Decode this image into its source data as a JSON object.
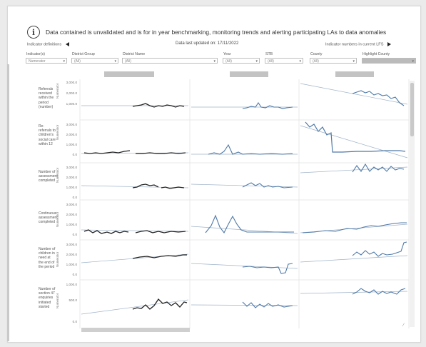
{
  "notice": {
    "text": "Data contained is unvalidated and is for in year benchmarking, monitoring trends and alerting participating LAs to data anomalies"
  },
  "nav": {
    "indicator_definitions": "Indicator definitions",
    "data_updated": "Data last updated on: 17/11/2022",
    "indicator_numbers": "Indicator numbers in current LFS"
  },
  "filters": [
    {
      "label": "Indicator(s)",
      "value": "Numerator"
    },
    {
      "label": "District Group",
      "value": "(All)"
    },
    {
      "label": "District Name",
      "value": "(All)"
    },
    {
      "label": "Year",
      "value": "(All)"
    },
    {
      "label": "STB",
      "value": "(All)"
    },
    {
      "label": "County",
      "value": "(All)"
    },
    {
      "label": "Highlight County",
      "value": ""
    }
  ],
  "rows": [
    {
      "label": "Referrals\nreceived\nwithin the\nperiod\n(number)",
      "ylabel": "Numerator",
      "ticks": [
        "3,000.0",
        "2,000.0",
        "1,000.0"
      ]
    },
    {
      "label": "Re-\nreferrals to\nchildren's\nsocial care\nwithin 12",
      "ylabel": "Numerator",
      "ticks": [
        "3,000.0",
        "2,000.0",
        "1,000.0",
        "0.0"
      ]
    },
    {
      "label": "Number of\nassessment\ncompleted",
      "ylabel": "Numerator",
      "ticks": [
        "3,000.0",
        "2,000.0",
        "1,000.0",
        "0.0"
      ]
    },
    {
      "label": "Continuous\nassessment\ncompleted",
      "ylabel": "Numerator",
      "ticks": [
        "3,000.0",
        "2,000.0",
        "1,000.0",
        "0.0"
      ]
    },
    {
      "label": "Number of\nchildren in\nneed at\nthe end of\nthe period",
      "ylabel": "Numerator",
      "ticks": [
        "3,000.0",
        "2,000.0",
        "1,000.0",
        "0.0"
      ]
    },
    {
      "label": "Number of\nsection 47\nenquiries\ninitiated\nstarted",
      "ylabel": "Numerator",
      "ticks": [
        "1,000.0",
        "500.0",
        "0.0"
      ]
    }
  ],
  "colors": {
    "dark_series": "#222222",
    "blue_series": "#4e79a7",
    "trend": "#9fb3c8"
  }
}
